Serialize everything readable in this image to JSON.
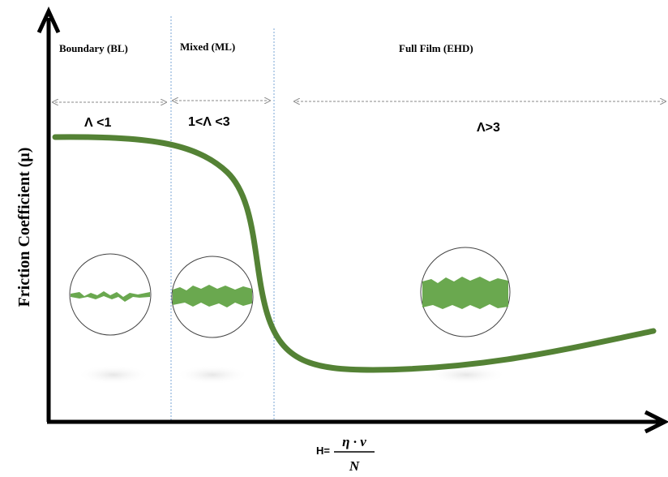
{
  "regions": [
    {
      "name": "Boundary (BL)",
      "condition": "Λ <1"
    },
    {
      "name": "Mixed (ML)",
      "condition": "1<Λ <3"
    },
    {
      "name": "Full Film (EHD)",
      "condition": "Λ>3"
    }
  ],
  "y_axis": {
    "label": "Friction Coefficient (μ)"
  },
  "x_axis": {
    "prefix": "H=",
    "numerator": "η · v",
    "denominator": "N"
  }
}
